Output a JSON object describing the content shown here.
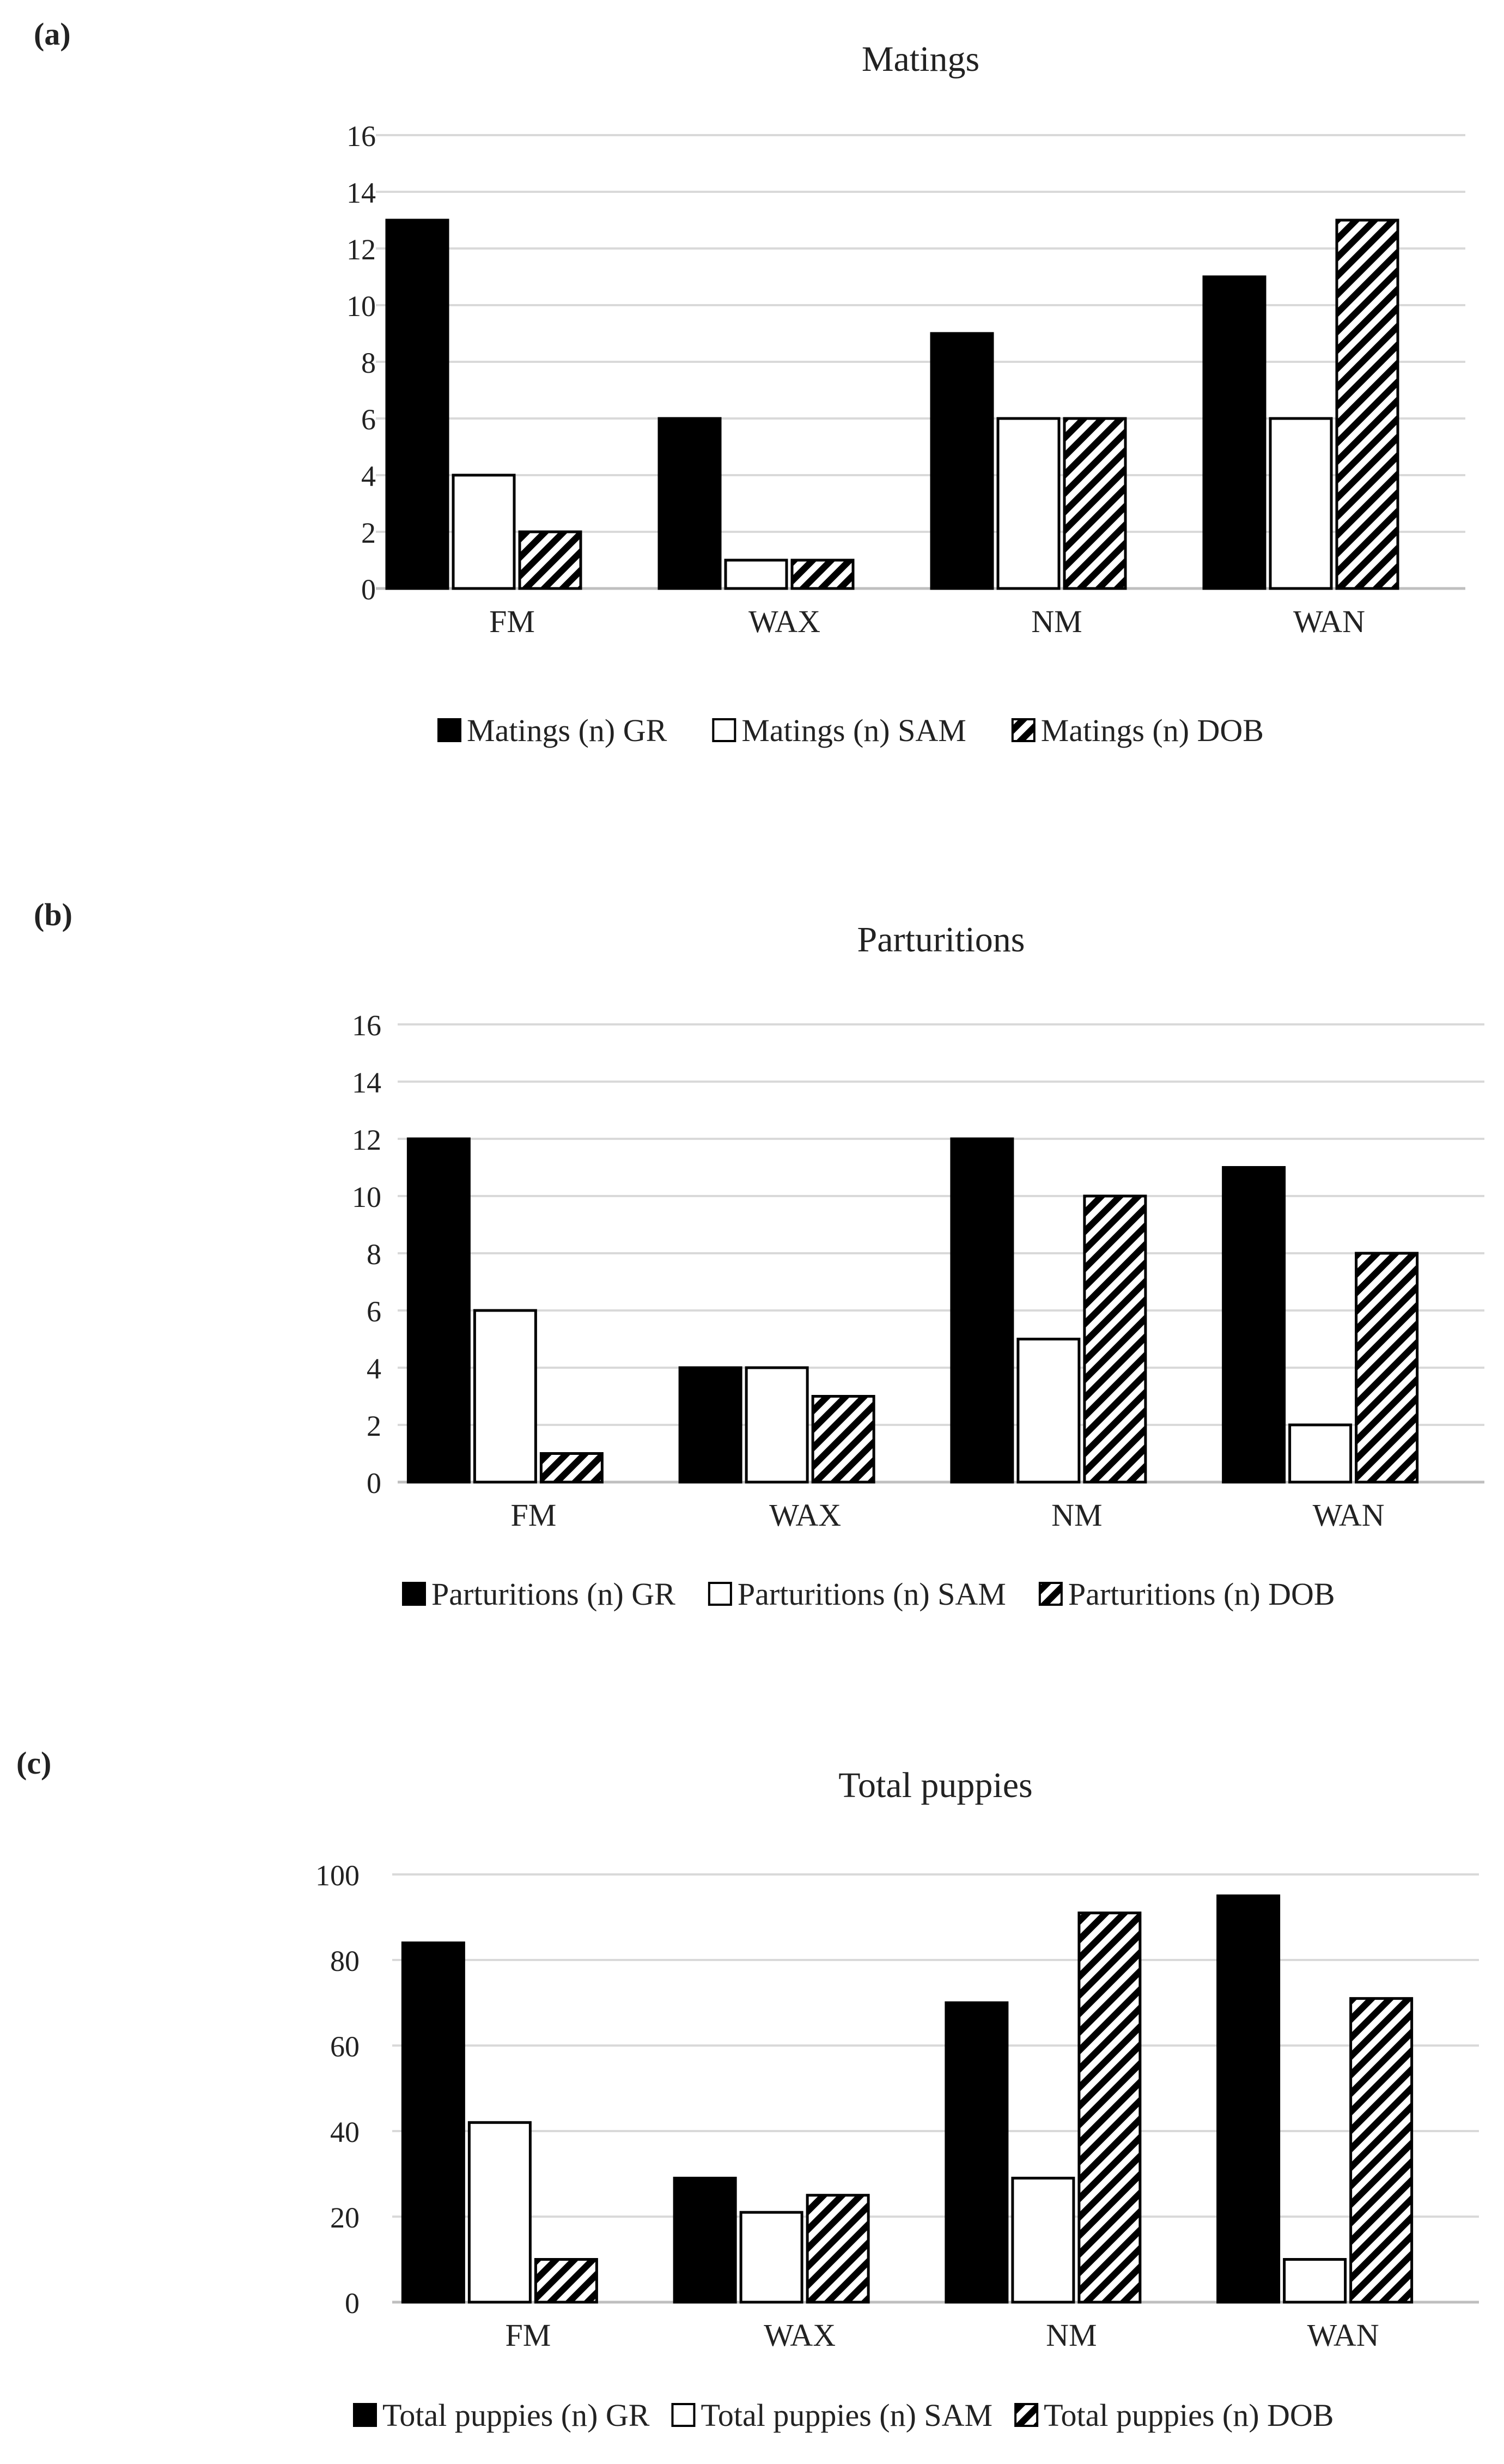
{
  "colors": {
    "gr": "#000000",
    "sam": "#ffffff",
    "dob_hatch": "#000000",
    "grid": "#d9d9d9",
    "axis": "#bfbfbf",
    "text": "#222222"
  },
  "chart_data": [
    {
      "type": "bar",
      "panel_label": "(a)",
      "title": "Matings",
      "categories": [
        "FM",
        "WAX",
        "NM",
        "WAN"
      ],
      "series": [
        {
          "name": "Matings (n) GR",
          "pattern": "solid",
          "values": [
            13,
            6,
            9,
            11
          ]
        },
        {
          "name": "Matings (n) SAM",
          "pattern": "hollow",
          "values": [
            4,
            1,
            6,
            6
          ]
        },
        {
          "name": "Matings (n) DOB",
          "pattern": "hatch",
          "values": [
            2,
            1,
            6,
            13
          ]
        }
      ],
      "ylim": [
        0,
        16
      ],
      "yticks": [
        0,
        2,
        4,
        6,
        8,
        10,
        12,
        14,
        16
      ],
      "grid": true,
      "legend": "bottom",
      "xlabel": "",
      "ylabel": ""
    },
    {
      "type": "bar",
      "panel_label": "(b)",
      "title": "Parturitions",
      "categories": [
        "FM",
        "WAX",
        "NM",
        "WAN"
      ],
      "series": [
        {
          "name": "Parturitions (n) GR",
          "pattern": "solid",
          "values": [
            12,
            4,
            12,
            11
          ]
        },
        {
          "name": "Parturitions (n) SAM",
          "pattern": "hollow",
          "values": [
            6,
            4,
            5,
            2
          ]
        },
        {
          "name": "Parturitions (n) DOB",
          "pattern": "hatch",
          "values": [
            1,
            3,
            10,
            8
          ]
        }
      ],
      "ylim": [
        0,
        16
      ],
      "yticks": [
        0,
        2,
        4,
        6,
        8,
        10,
        12,
        14,
        16
      ],
      "grid": true,
      "legend": "bottom",
      "xlabel": "",
      "ylabel": ""
    },
    {
      "type": "bar",
      "panel_label": "(c)",
      "title": "Total puppies",
      "categories": [
        "FM",
        "WAX",
        "NM",
        "WAN"
      ],
      "series": [
        {
          "name": "Total puppies (n) GR",
          "pattern": "solid",
          "values": [
            84,
            29,
            70,
            95
          ]
        },
        {
          "name": "Total puppies (n) SAM",
          "pattern": "hollow",
          "values": [
            42,
            21,
            29,
            10
          ]
        },
        {
          "name": "Total puppies (n) DOB",
          "pattern": "hatch",
          "values": [
            10,
            25,
            91,
            71
          ]
        }
      ],
      "ylim": [
        0,
        100
      ],
      "yticks": [
        0,
        20,
        40,
        60,
        80,
        100
      ],
      "grid": true,
      "legend": "bottom",
      "xlabel": "",
      "ylabel": ""
    }
  ]
}
